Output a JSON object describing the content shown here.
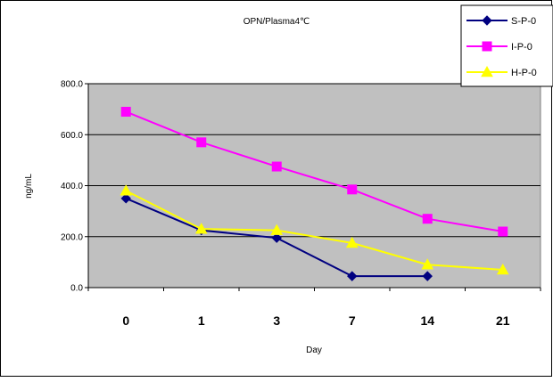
{
  "chart_data": {
    "type": "line",
    "title": "OPN/Plasma4℃",
    "xlabel": "Day",
    "ylabel": "ng/mL",
    "categories": [
      "0",
      "1",
      "3",
      "7",
      "14",
      "21"
    ],
    "ylim": [
      0,
      800
    ],
    "yticks": [
      "0.0",
      "200.0",
      "400.0",
      "600.0",
      "800.0"
    ],
    "yticks_values": [
      0,
      200,
      400,
      600,
      800
    ],
    "grid": true,
    "legend_position": "top-right",
    "plot_background": "#c0c0c0",
    "series": [
      {
        "name": "S-P-0",
        "color": "#000080",
        "marker": "diamond",
        "values": [
          350,
          225,
          195,
          45,
          45,
          null
        ]
      },
      {
        "name": "I-P-0",
        "color": "#ff00ff",
        "marker": "square",
        "values": [
          690,
          570,
          475,
          385,
          270,
          220
        ]
      },
      {
        "name": "H-P-0",
        "color": "#ffff00",
        "marker": "triangle",
        "values": [
          380,
          230,
          225,
          175,
          90,
          70
        ]
      }
    ]
  }
}
